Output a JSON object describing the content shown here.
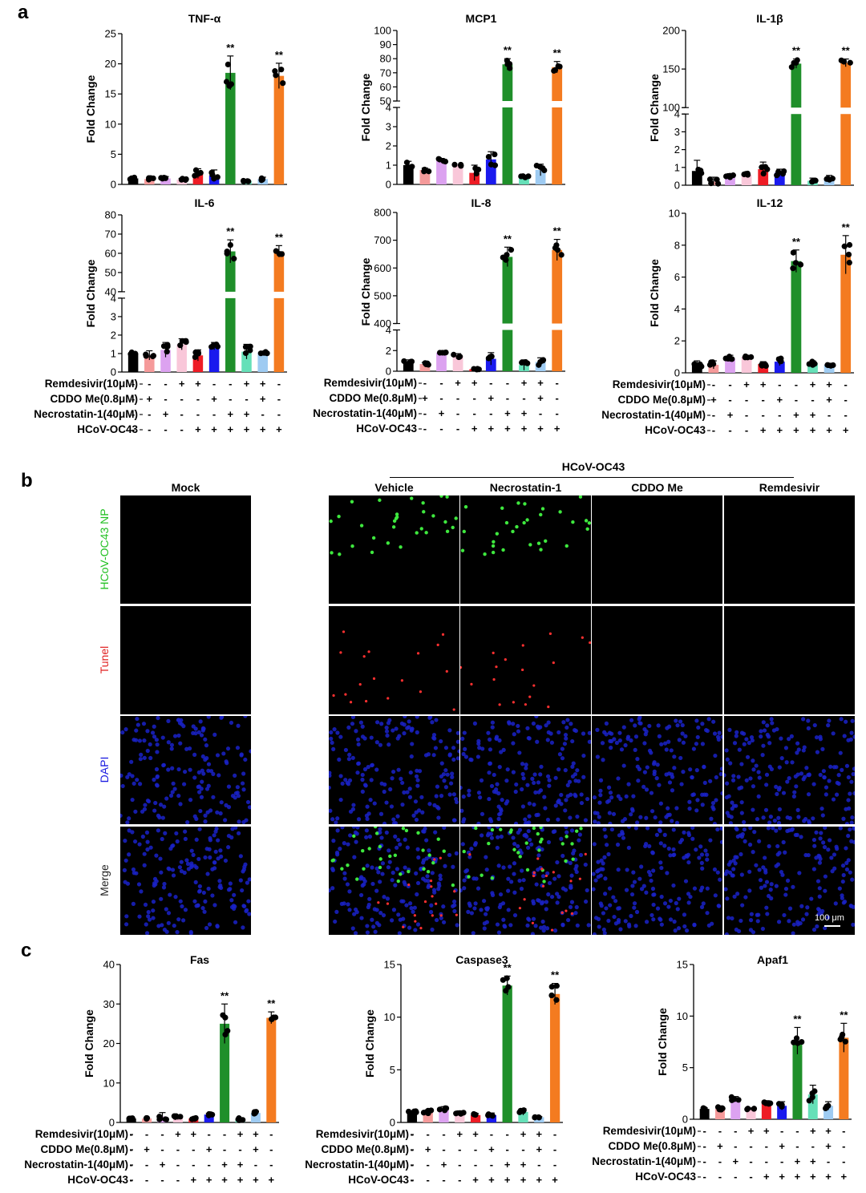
{
  "panels": {
    "a": "a",
    "b": "b",
    "c": "c"
  },
  "colors": {
    "black": "#000000",
    "salmon": "#f59a9a",
    "violet": "#dca2f0",
    "pink": "#f9c7d9",
    "red": "#ee1c25",
    "blue": "#1a1aee",
    "green": "#1f8f2a",
    "mint": "#66e0b8",
    "lightblue": "#9ecbf2",
    "orange": "#f47b20"
  },
  "treatments": {
    "labels": [
      "Remdesivir(10μM)",
      "CDDO Me(0.8μM)",
      "Necrostatin-1(40μM)",
      "HCoV-OC43"
    ],
    "signs": [
      [
        "-",
        "-",
        "-",
        "+",
        "+",
        "-",
        "-",
        "+",
        "+",
        "-"
      ],
      [
        "-",
        "+",
        "-",
        "-",
        "-",
        "+",
        "-",
        "-",
        "+",
        "-"
      ],
      [
        "-",
        "-",
        "+",
        "-",
        "-",
        "-",
        "+",
        "+",
        "-",
        "-"
      ],
      [
        "-",
        "-",
        "-",
        "-",
        "+",
        "+",
        "+",
        "+",
        "+",
        "+"
      ]
    ]
  },
  "chart_data": [
    {
      "type": "bar",
      "title": "TNF-α",
      "ylabel": "Fold Change",
      "panel": "a",
      "ylim": [
        0,
        25
      ],
      "yticks": [
        0,
        5,
        10,
        15,
        20,
        25
      ],
      "values": [
        1.0,
        0.9,
        1.0,
        0.8,
        1.8,
        1.5,
        18.5,
        0.6,
        0.9,
        18.0
      ],
      "errors": [
        0.2,
        0.2,
        0.3,
        0.2,
        0.8,
        0.9,
        2.8,
        0.2,
        0.3,
        2.1
      ],
      "significance": [
        "",
        "",
        "",
        "",
        "",
        "",
        "**",
        "",
        "",
        "**"
      ]
    },
    {
      "type": "bar",
      "title": "MCP1",
      "ylabel": "Fold Change",
      "panel": "a",
      "broken_axis": {
        "lower": [
          0,
          4
        ],
        "upper": [
          50,
          100
        ]
      },
      "yticks_lower": [
        0,
        1,
        2,
        3,
        4
      ],
      "yticks_upper": [
        50,
        60,
        70,
        80,
        90,
        100
      ],
      "values": [
        1.0,
        0.75,
        1.25,
        1.0,
        0.6,
        1.3,
        76,
        0.4,
        0.75,
        74
      ],
      "errors": [
        0.2,
        0.1,
        0.1,
        0.0,
        0.4,
        0.4,
        4,
        0.05,
        0.3,
        4
      ],
      "significance": [
        "",
        "",
        "",
        "",
        "",
        "",
        "**",
        "",
        "",
        "**"
      ]
    },
    {
      "type": "bar",
      "title": "IL-1β",
      "ylabel": "Fold Change",
      "panel": "a",
      "broken_axis": {
        "lower": [
          0,
          4
        ],
        "upper": [
          100,
          200
        ]
      },
      "yticks_lower": [
        0,
        1,
        2,
        3,
        4
      ],
      "yticks_upper": [
        100,
        150,
        200
      ],
      "values": [
        0.8,
        0.2,
        0.5,
        0.6,
        0.9,
        0.7,
        157,
        0.25,
        0.4,
        158
      ],
      "errors": [
        0.6,
        0.25,
        0.15,
        0.1,
        0.4,
        0.2,
        6,
        0.15,
        0.15,
        5
      ],
      "significance": [
        "",
        "",
        "",
        "",
        "",
        "",
        "**",
        "",
        "",
        "**"
      ]
    },
    {
      "type": "bar",
      "title": "IL-6",
      "ylabel": "Fold Change",
      "panel": "a",
      "broken_axis": {
        "lower": [
          0,
          4
        ],
        "upper": [
          40,
          80
        ]
      },
      "yticks_lower": [
        0,
        1,
        2,
        3,
        4
      ],
      "yticks_upper": [
        40,
        50,
        60,
        70,
        80
      ],
      "values": [
        1.0,
        0.9,
        1.2,
        1.5,
        0.9,
        1.4,
        61,
        1.1,
        1.05,
        61
      ],
      "errors": [
        0.1,
        0.25,
        0.4,
        0.3,
        0.3,
        0.2,
        6,
        0.4,
        0.05,
        3
      ],
      "significance": [
        "",
        "",
        "",
        "",
        "",
        "",
        "**",
        "",
        "",
        "**"
      ]
    },
    {
      "type": "bar",
      "title": "IL-8",
      "ylabel": "Fold Change",
      "panel": "a",
      "broken_axis": {
        "lower": [
          0,
          4
        ],
        "upper": [
          400,
          800
        ]
      },
      "yticks_lower": [
        0,
        2,
        4
      ],
      "yticks_upper": [
        400,
        500,
        600,
        700,
        800
      ],
      "values": [
        0.9,
        0.7,
        1.8,
        1.5,
        0.2,
        1.2,
        640,
        0.6,
        0.9,
        665
      ],
      "errors": [
        0.2,
        0.15,
        0.05,
        0.2,
        0.05,
        0.6,
        35,
        0.5,
        0.4,
        38
      ],
      "significance": [
        "",
        "",
        "",
        "",
        "",
        "",
        "**",
        "",
        "",
        "**"
      ]
    },
    {
      "type": "bar",
      "title": "IL-12",
      "ylabel": "Fold Change",
      "panel": "a",
      "ylim": [
        0,
        10
      ],
      "yticks": [
        0,
        2,
        4,
        6,
        8,
        10
      ],
      "values": [
        0.5,
        0.5,
        0.9,
        1.0,
        0.55,
        0.7,
        7.0,
        0.6,
        0.5,
        7.4
      ],
      "errors": [
        0.25,
        0.25,
        0.2,
        0.05,
        0.15,
        0.25,
        0.7,
        0.15,
        0.1,
        1.2
      ],
      "significance": [
        "",
        "",
        "",
        "",
        "",
        "",
        "**",
        "",
        "",
        "**"
      ]
    },
    {
      "type": "bar",
      "title": "Fas",
      "ylabel": "Fold Change",
      "panel": "c",
      "ylim": [
        0,
        40
      ],
      "yticks": [
        0,
        10,
        20,
        30,
        40
      ],
      "values": [
        1.0,
        1.0,
        1.5,
        1.2,
        1.0,
        2.0,
        25,
        0.8,
        2.4,
        26.5
      ],
      "errors": [
        0.1,
        0.2,
        1.0,
        0.5,
        0.3,
        0.3,
        5,
        0.4,
        0.4,
        1.5
      ],
      "significance": [
        "",
        "",
        "",
        "",
        "",
        "",
        "**",
        "",
        "",
        "**"
      ]
    },
    {
      "type": "bar",
      "title": "Caspase3",
      "ylabel": "Fold Change",
      "panel": "c",
      "ylim": [
        0,
        15
      ],
      "yticks": [
        0,
        5,
        10,
        15
      ],
      "values": [
        1.0,
        1.0,
        1.2,
        0.9,
        0.7,
        0.7,
        13.0,
        1.0,
        0.5,
        12.2
      ],
      "errors": [
        0.1,
        0.2,
        0.3,
        0.2,
        0.15,
        0.2,
        0.9,
        0.3,
        0.05,
        1.0
      ],
      "significance": [
        "",
        "",
        "",
        "",
        "",
        "",
        "**",
        "",
        "",
        "**"
      ]
    },
    {
      "type": "bar",
      "title": "Apaf1",
      "ylabel": "Fold Change",
      "panel": "c",
      "ylim": [
        0,
        15
      ],
      "yticks": [
        0,
        5,
        10,
        15
      ],
      "values": [
        1.0,
        1.0,
        2.0,
        1.0,
        1.6,
        1.3,
        7.6,
        2.4,
        1.3,
        7.9
      ],
      "errors": [
        0.1,
        0.3,
        0.2,
        0.1,
        0.2,
        0.4,
        1.3,
        0.9,
        0.4,
        1.4
      ],
      "significance": [
        "",
        "",
        "",
        "",
        "",
        "",
        "**",
        "",
        "",
        "**"
      ]
    }
  ],
  "microscopy": {
    "group_header": "HCoV-OC43",
    "columns": [
      "Mock",
      "Vehicle",
      "Necrostatin-1",
      "CDDO Me",
      "Remdesivir"
    ],
    "rows": [
      {
        "label": "HCoV-OC43 NP",
        "color": "#22c022"
      },
      {
        "label": "Tunel",
        "color": "#e02020"
      },
      {
        "label": "DAPI",
        "color": "#1a1ae0"
      },
      {
        "label": "Merge",
        "color": "#222222"
      }
    ],
    "scale_bar": "100 μm"
  }
}
